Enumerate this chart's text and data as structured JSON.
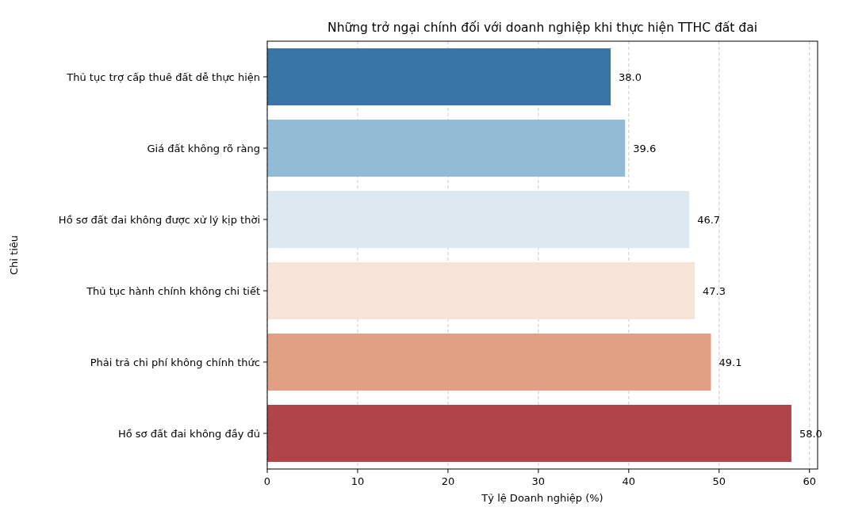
{
  "chart_data": {
    "type": "bar",
    "orientation": "horizontal",
    "title": "Những trở ngại chính đối với doanh nghiệp khi thực hiện TTHC đất đai",
    "xlabel": "Tỷ lệ Doanh nghiệp (%)",
    "ylabel": "Chỉ tiêu",
    "categories": [
      "Thủ tục trợ cấp thuê đất dễ thực hiện",
      "Giá đất không rõ ràng",
      "Hồ sơ đất đai không được xử lý kịp thời",
      "Thủ tục hành chính không chi tiết",
      "Phải trả chi phí không chính thức",
      "Hồ sơ đất đai không đầy đủ"
    ],
    "values": [
      38.0,
      39.6,
      46.7,
      47.3,
      49.1,
      58.0
    ],
    "value_labels": [
      "38.0",
      "39.6",
      "46.7",
      "47.3",
      "49.1",
      "58.0"
    ],
    "colors": [
      "#3a75a7",
      "#92bbd5",
      "#dde8f1",
      "#f7e4d8",
      "#e1a083",
      "#b0444a"
    ],
    "xlim": [
      0,
      60.9
    ],
    "xticks": [
      0,
      10,
      20,
      30,
      40,
      50,
      60
    ],
    "grid": "x"
  }
}
